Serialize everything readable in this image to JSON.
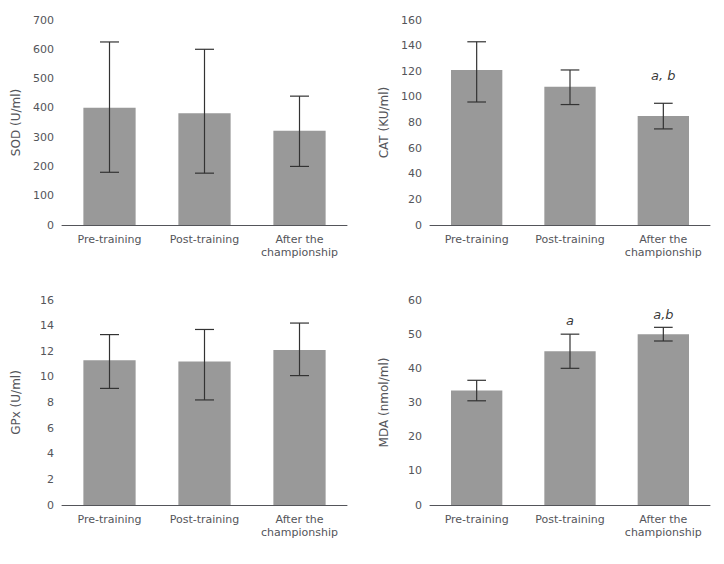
{
  "chart_data": [
    {
      "type": "bar",
      "ylabel": "SOD (U/ml)",
      "categories": [
        "Pre-training",
        "Post-training",
        "After the\nchampionship"
      ],
      "values": [
        400,
        382,
        322
      ],
      "errors_upper": [
        225,
        218,
        118
      ],
      "errors_lower": [
        220,
        205,
        122
      ],
      "color": "#999999",
      "ylim": [
        0,
        700
      ],
      "yticks": [
        0,
        100,
        200,
        300,
        400,
        500,
        600,
        700
      ],
      "grid": false,
      "annotations": []
    },
    {
      "type": "bar",
      "ylabel": "CAT (KU/ml)",
      "categories": [
        "Pre-training",
        "Post-training",
        "After the\nchampionship"
      ],
      "values": [
        121,
        108,
        85
      ],
      "errors_upper": [
        22,
        13,
        10
      ],
      "errors_lower": [
        25,
        14,
        10
      ],
      "color": "#999999",
      "ylim": [
        0,
        160
      ],
      "yticks": [
        0,
        20,
        40,
        60,
        80,
        100,
        120,
        140,
        160
      ],
      "grid": false,
      "annotations": [
        {
          "text": "a, b",
          "x": "After the\nchampionship",
          "y": 112
        }
      ]
    },
    {
      "type": "bar",
      "ylabel": "GPx (U/ml)",
      "categories": [
        "Pre-training",
        "Post-training",
        "After the\nchampionship"
      ],
      "values": [
        11.3,
        11.2,
        12.1
      ],
      "errors_upper": [
        2.0,
        2.5,
        2.1
      ],
      "errors_lower": [
        2.2,
        3.0,
        2.0
      ],
      "color": "#999999",
      "ylim": [
        0,
        16
      ],
      "yticks": [
        0,
        2,
        4,
        6,
        8,
        10,
        12,
        14,
        16
      ],
      "grid": false,
      "annotations": []
    },
    {
      "type": "bar",
      "ylabel": "MDA (nmol/ml)",
      "categories": [
        "Pre-training",
        "Post-training",
        "After the\nchampionship"
      ],
      "values": [
        33.5,
        45,
        50
      ],
      "errors_upper": [
        3,
        5,
        2
      ],
      "errors_lower": [
        3,
        5,
        2
      ],
      "color": "#999999",
      "ylim": [
        0,
        60
      ],
      "yticks": [
        0,
        10,
        20,
        30,
        40,
        50,
        60
      ],
      "grid": false,
      "annotations": [
        {
          "text": "a",
          "x": "Post-training",
          "y": 52
        },
        {
          "text": "a,b",
          "x": "After the\nchampionship",
          "y": 54
        }
      ]
    }
  ]
}
